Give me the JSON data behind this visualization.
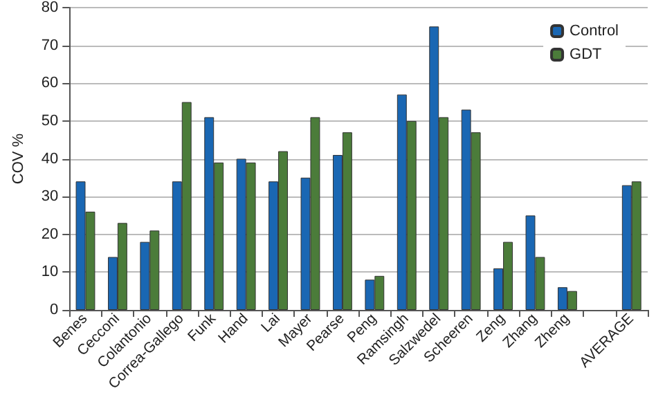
{
  "chart_data": {
    "type": "bar",
    "ylabel": "COV %",
    "categories": [
      "Benes",
      "Cecconi",
      "Colantonio",
      "Correa-Gallego",
      "Funk",
      "Hand",
      "Lai",
      "Mayer",
      "Pearse",
      "Peng",
      "Ramsingh",
      "Salzwedel",
      "Scheeren",
      "Zeng",
      "Zhang",
      "Zheng",
      null,
      "AVERAGE"
    ],
    "series": [
      {
        "name": "Control",
        "color": "#1a67b3",
        "values": [
          34,
          14,
          18,
          34,
          51,
          40,
          34,
          35,
          41,
          8,
          57,
          75,
          53,
          11,
          25,
          6,
          null,
          33
        ]
      },
      {
        "name": "GDT",
        "color": "#4b7c3a",
        "values": [
          26,
          23,
          21,
          55,
          39,
          39,
          42,
          51,
          47,
          9,
          50,
          51,
          47,
          18,
          14,
          5,
          null,
          34
        ]
      }
    ],
    "ylim": [
      0,
      80
    ],
    "yticks": [
      0,
      10,
      20,
      30,
      40,
      50,
      60,
      70,
      80
    ],
    "grid": "y",
    "legend": "top right"
  }
}
